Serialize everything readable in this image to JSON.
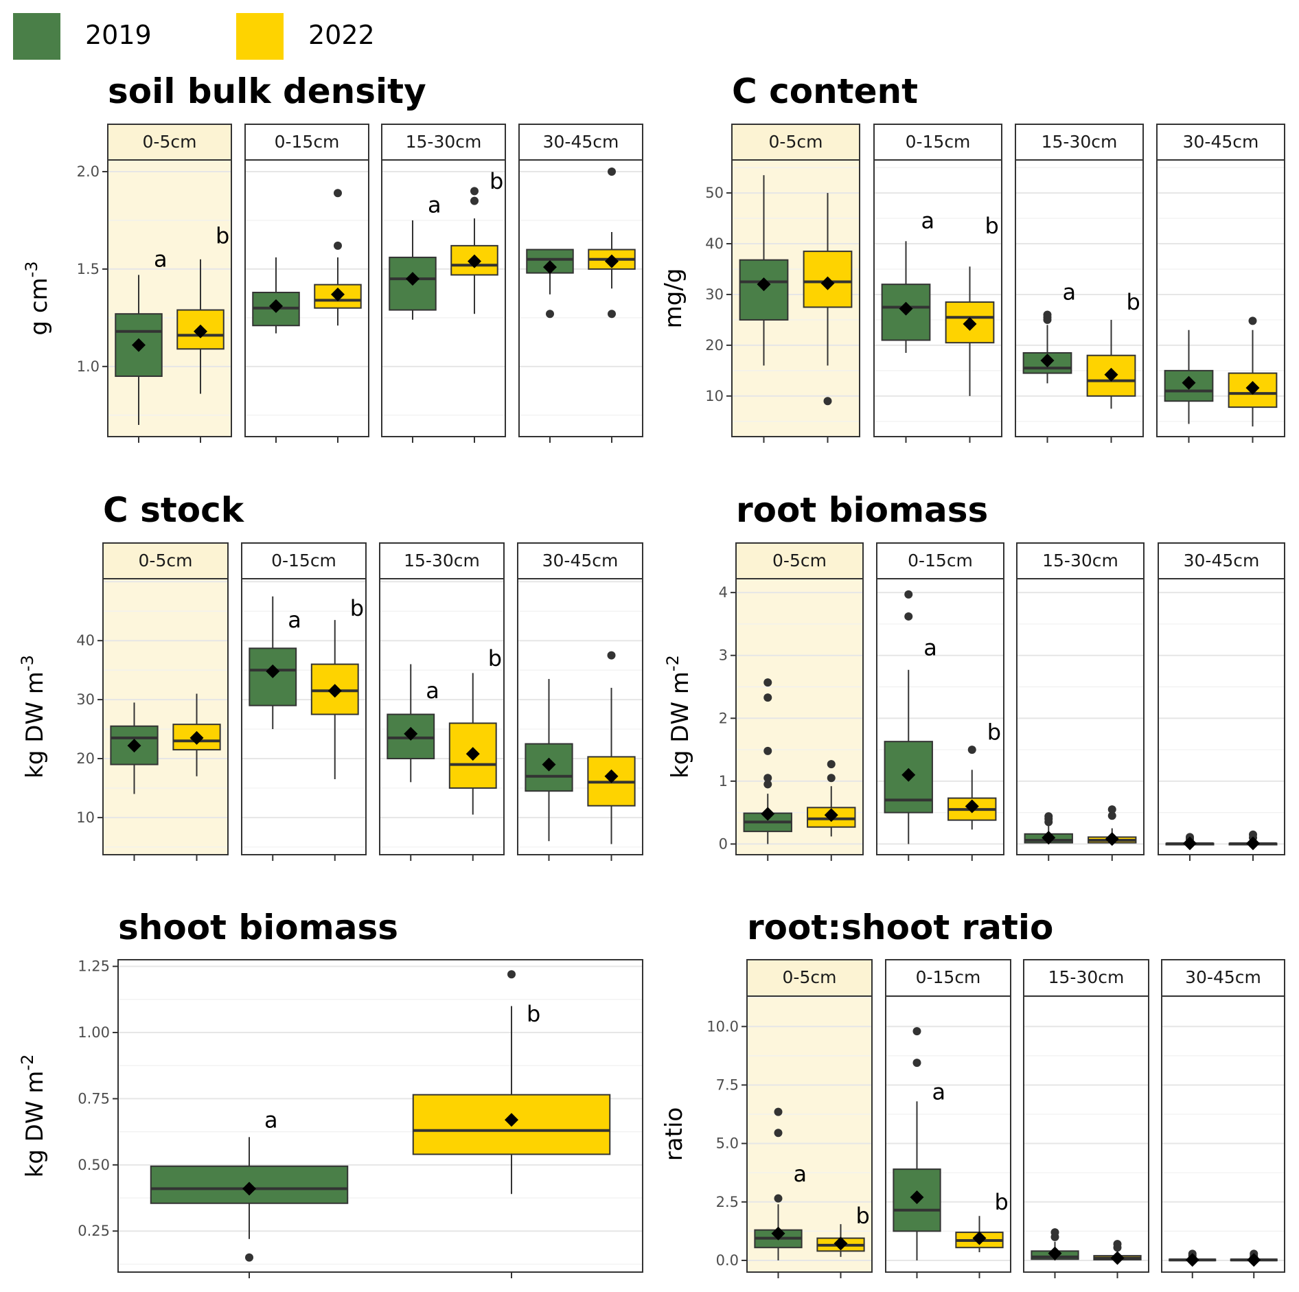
{
  "legend": [
    {
      "label": "2019",
      "color": "#4a7f48"
    },
    {
      "label": "2022",
      "color": "#fed300"
    }
  ],
  "colors": {
    "y2019": "#4a7f48",
    "y2022": "#fed300",
    "highlight_strip": "#fcf3d3",
    "highlight_panel": "#fdf6dc"
  },
  "facets": [
    "0-5cm",
    "0-15cm",
    "15-30cm",
    "30-45cm"
  ],
  "chart_data": [
    {
      "id": "bulk",
      "type": "box",
      "title": "soil bulk density",
      "ylabel": "g cm",
      "ylabel_sup": "-3",
      "ylim": [
        0.64,
        2.06
      ],
      "yticks": [
        "1.0",
        "1.5",
        "2.0"
      ],
      "highlight_facet": "0-5cm",
      "facets": [
        {
          "name": "0-5cm",
          "letters": [
            "a",
            "b"
          ],
          "boxes": [
            {
              "year": "2019",
              "q1": 0.95,
              "median": 1.18,
              "q3": 1.27,
              "whisker_low": 0.7,
              "whisker_high": 1.47,
              "mean": 1.11,
              "outliers": [],
              "letter_y": 1.55
            },
            {
              "year": "2022",
              "q1": 1.09,
              "median": 1.16,
              "q3": 1.29,
              "whisker_low": 0.86,
              "whisker_high": 1.55,
              "mean": 1.18,
              "outliers": [],
              "letter_y": 1.67
            }
          ]
        },
        {
          "name": "0-15cm",
          "letters": [],
          "boxes": [
            {
              "year": "2019",
              "q1": 1.21,
              "median": 1.3,
              "q3": 1.38,
              "whisker_low": 1.17,
              "whisker_high": 1.56,
              "mean": 1.31,
              "outliers": []
            },
            {
              "year": "2022",
              "q1": 1.3,
              "median": 1.34,
              "q3": 1.42,
              "whisker_low": 1.21,
              "whisker_high": 1.56,
              "mean": 1.37,
              "outliers": [
                1.62,
                1.89
              ]
            }
          ]
        },
        {
          "name": "15-30cm",
          "letters": [
            "a",
            "b"
          ],
          "boxes": [
            {
              "year": "2019",
              "q1": 1.29,
              "median": 1.45,
              "q3": 1.56,
              "whisker_low": 1.24,
              "whisker_high": 1.75,
              "mean": 1.45,
              "outliers": [],
              "letter_y": 1.83
            },
            {
              "year": "2022",
              "q1": 1.47,
              "median": 1.52,
              "q3": 1.62,
              "whisker_low": 1.27,
              "whisker_high": 1.76,
              "mean": 1.54,
              "outliers": [
                1.85,
                1.9
              ],
              "letter_y": 1.95
            }
          ]
        },
        {
          "name": "30-45cm",
          "letters": [],
          "boxes": [
            {
              "year": "2019",
              "q1": 1.48,
              "median": 1.55,
              "q3": 1.6,
              "whisker_low": 1.37,
              "whisker_high": 1.6,
              "mean": 1.51,
              "outliers": [
                1.27
              ]
            },
            {
              "year": "2022",
              "q1": 1.5,
              "median": 1.55,
              "q3": 1.6,
              "whisker_low": 1.4,
              "whisker_high": 1.69,
              "mean": 1.54,
              "outliers": [
                1.27,
                2.0
              ]
            }
          ]
        }
      ]
    },
    {
      "id": "ccontent",
      "type": "box",
      "title": "C content",
      "ylabel": "mg/g",
      "ylabel_sup": "",
      "ylim": [
        2.0,
        56.5
      ],
      "yticks": [
        "10",
        "20",
        "30",
        "40",
        "50"
      ],
      "highlight_facet": "0-5cm",
      "facets": [
        {
          "name": "0-5cm",
          "letters": [],
          "boxes": [
            {
              "year": "2019",
              "q1": 25.0,
              "median": 32.5,
              "q3": 36.8,
              "whisker_low": 16.0,
              "whisker_high": 53.5,
              "mean": 32.0,
              "outliers": []
            },
            {
              "year": "2022",
              "q1": 27.5,
              "median": 32.5,
              "q3": 38.5,
              "whisker_low": 16.0,
              "whisker_high": 50.0,
              "mean": 32.2,
              "outliers": [
                9.0
              ]
            }
          ]
        },
        {
          "name": "0-15cm",
          "letters": [
            "a",
            "b"
          ],
          "boxes": [
            {
              "year": "2019",
              "q1": 21.0,
              "median": 27.5,
              "q3": 32.0,
              "whisker_low": 18.5,
              "whisker_high": 40.5,
              "mean": 27.2,
              "outliers": [],
              "letter_y": 44.5
            },
            {
              "year": "2022",
              "q1": 20.5,
              "median": 25.5,
              "q3": 28.5,
              "whisker_low": 10.0,
              "whisker_high": 35.5,
              "mean": 24.2,
              "outliers": [],
              "letter_y": 43.5
            }
          ]
        },
        {
          "name": "15-30cm",
          "letters": [
            "a",
            "b"
          ],
          "boxes": [
            {
              "year": "2019",
              "q1": 14.5,
              "median": 15.5,
              "q3": 18.5,
              "whisker_low": 12.5,
              "whisker_high": 24.0,
              "mean": 17.0,
              "outliers": [
                25.0,
                25.5,
                26.0
              ],
              "letter_y": 30.5
            },
            {
              "year": "2022",
              "q1": 10.0,
              "median": 13.0,
              "q3": 18.0,
              "whisker_low": 7.5,
              "whisker_high": 25.0,
              "mean": 14.2,
              "outliers": [],
              "letter_y": 28.5
            }
          ]
        },
        {
          "name": "30-45cm",
          "letters": [],
          "boxes": [
            {
              "year": "2019",
              "q1": 9.0,
              "median": 11.0,
              "q3": 15.0,
              "whisker_low": 4.5,
              "whisker_high": 23.0,
              "mean": 12.6,
              "outliers": []
            },
            {
              "year": "2022",
              "q1": 7.8,
              "median": 10.5,
              "q3": 14.5,
              "whisker_low": 4.0,
              "whisker_high": 23.0,
              "mean": 11.6,
              "outliers": [
                24.8
              ]
            }
          ]
        }
      ]
    },
    {
      "id": "cstock",
      "type": "box",
      "title": "C stock",
      "ylabel": "kg DW m",
      "ylabel_sup": "-3",
      "ylim": [
        3.7,
        50.5
      ],
      "yticks": [
        "10",
        "20",
        "30",
        "40"
      ],
      "highlight_facet": "0-5cm",
      "facets": [
        {
          "name": "0-5cm",
          "letters": [],
          "boxes": [
            {
              "year": "2019",
              "q1": 19.0,
              "median": 23.5,
              "q3": 25.5,
              "whisker_low": 14.0,
              "whisker_high": 29.5,
              "mean": 22.2,
              "outliers": []
            },
            {
              "year": "2022",
              "q1": 21.5,
              "median": 23.0,
              "q3": 25.8,
              "whisker_low": 17.0,
              "whisker_high": 31.0,
              "mean": 23.5,
              "outliers": []
            }
          ]
        },
        {
          "name": "0-15cm",
          "letters": [
            "a",
            "b"
          ],
          "boxes": [
            {
              "year": "2019",
              "q1": 29.0,
              "median": 35.0,
              "q3": 38.7,
              "whisker_low": 25.0,
              "whisker_high": 47.5,
              "mean": 34.8,
              "outliers": [],
              "letter_y": 43.5
            },
            {
              "year": "2022",
              "q1": 27.5,
              "median": 31.5,
              "q3": 36.0,
              "whisker_low": 16.5,
              "whisker_high": 43.5,
              "mean": 31.5,
              "outliers": [],
              "letter_y": 45.5
            }
          ]
        },
        {
          "name": "15-30cm",
          "letters": [
            "a",
            "b"
          ],
          "boxes": [
            {
              "year": "2019",
              "q1": 20.0,
              "median": 23.5,
              "q3": 27.5,
              "whisker_low": 16.0,
              "whisker_high": 36.0,
              "mean": 24.2,
              "outliers": [],
              "letter_y": 31.5
            },
            {
              "year": "2022",
              "q1": 15.0,
              "median": 19.0,
              "q3": 26.0,
              "whisker_low": 10.5,
              "whisker_high": 34.5,
              "mean": 20.8,
              "outliers": [],
              "letter_y": 37.0
            }
          ]
        },
        {
          "name": "30-45cm",
          "letters": [],
          "boxes": [
            {
              "year": "2019",
              "q1": 14.5,
              "median": 17.0,
              "q3": 22.5,
              "whisker_low": 6.0,
              "whisker_high": 33.5,
              "mean": 19.0,
              "outliers": []
            },
            {
              "year": "2022",
              "q1": 12.0,
              "median": 16.0,
              "q3": 20.3,
              "whisker_low": 5.5,
              "whisker_high": 32.0,
              "mean": 17.0,
              "outliers": [
                37.5
              ]
            }
          ]
        }
      ]
    },
    {
      "id": "root",
      "type": "box",
      "title": "root biomass",
      "ylabel": "kg DW m",
      "ylabel_sup": "-2",
      "ylim": [
        -0.17,
        4.22
      ],
      "yticks": [
        "0",
        "1",
        "2",
        "3",
        "4"
      ],
      "highlight_facet": "0-5cm",
      "facets": [
        {
          "name": "0-5cm",
          "letters": [],
          "boxes": [
            {
              "year": "2019",
              "q1": 0.2,
              "median": 0.35,
              "q3": 0.49,
              "whisker_low": 0.0,
              "whisker_high": 0.8,
              "mean": 0.48,
              "outliers": [
                0.95,
                1.05,
                1.48,
                2.33,
                2.57
              ]
            },
            {
              "year": "2022",
              "q1": 0.27,
              "median": 0.4,
              "q3": 0.58,
              "whisker_low": 0.12,
              "whisker_high": 0.92,
              "mean": 0.46,
              "outliers": [
                1.05,
                1.27
              ]
            }
          ]
        },
        {
          "name": "0-15cm",
          "letters": [
            "a",
            "b"
          ],
          "boxes": [
            {
              "year": "2019",
              "q1": 0.5,
              "median": 0.7,
              "q3": 1.63,
              "whisker_low": 0.0,
              "whisker_high": 2.77,
              "mean": 1.1,
              "outliers": [
                3.62,
                3.97
              ],
              "letter_y": 3.12
            },
            {
              "year": "2022",
              "q1": 0.38,
              "median": 0.55,
              "q3": 0.73,
              "whisker_low": 0.23,
              "whisker_high": 1.18,
              "mean": 0.6,
              "outliers": [
                1.5
              ],
              "letter_y": 1.78
            }
          ]
        },
        {
          "name": "15-30cm",
          "letters": [],
          "boxes": [
            {
              "year": "2019",
              "q1": 0.02,
              "median": 0.06,
              "q3": 0.16,
              "whisker_low": 0.0,
              "whisker_high": 0.3,
              "mean": 0.1,
              "outliers": [
                0.35,
                0.4,
                0.44
              ]
            },
            {
              "year": "2022",
              "q1": 0.02,
              "median": 0.06,
              "q3": 0.11,
              "whisker_low": 0.0,
              "whisker_high": 0.25,
              "mean": 0.08,
              "outliers": [
                0.45,
                0.55
              ]
            }
          ]
        },
        {
          "name": "30-45cm",
          "letters": [],
          "boxes": [
            {
              "year": "2019",
              "q1": 0.0,
              "median": 0.005,
              "q3": 0.01,
              "whisker_low": 0.0,
              "whisker_high": 0.03,
              "mean": 0.01,
              "outliers": [
                0.08,
                0.11
              ]
            },
            {
              "year": "2022",
              "q1": 0.0,
              "median": 0.005,
              "q3": 0.01,
              "whisker_low": 0.0,
              "whisker_high": 0.03,
              "mean": 0.01,
              "outliers": [
                0.1,
                0.15
              ]
            }
          ]
        }
      ]
    },
    {
      "id": "shoot",
      "type": "box",
      "title": "shoot biomass",
      "ylabel": "kg DW m",
      "ylabel_sup": "-2",
      "ylim": [
        0.095,
        1.275
      ],
      "yticks": [
        "0.25",
        "0.50",
        "0.75",
        "1.00",
        "1.25"
      ],
      "highlight_facet": "",
      "facets": [
        {
          "name": "",
          "letters": [
            "a",
            "b"
          ],
          "boxes": [
            {
              "year": "2019",
              "q1": 0.355,
              "median": 0.41,
              "q3": 0.495,
              "whisker_low": 0.22,
              "whisker_high": 0.605,
              "mean": 0.41,
              "outliers": [
                0.15
              ],
              "letter_y": 0.67
            },
            {
              "year": "2022",
              "q1": 0.54,
              "median": 0.63,
              "q3": 0.765,
              "whisker_low": 0.39,
              "whisker_high": 1.1,
              "mean": 0.67,
              "outliers": [
                1.22
              ],
              "letter_y": 1.07
            }
          ]
        }
      ]
    },
    {
      "id": "ratio",
      "type": "box",
      "title": "root:shoot ratio",
      "ylabel": "ratio",
      "ylabel_sup": "",
      "ylim": [
        -0.5,
        11.3
      ],
      "yticks": [
        "0.0",
        "2.5",
        "5.0",
        "7.5",
        "10.0"
      ],
      "highlight_facet": "0-5cm",
      "facets": [
        {
          "name": "0-5cm",
          "letters": [
            "a",
            "b"
          ],
          "boxes": [
            {
              "year": "2019",
              "q1": 0.55,
              "median": 0.95,
              "q3": 1.3,
              "whisker_low": 0.0,
              "whisker_high": 2.4,
              "mean": 1.15,
              "outliers": [
                2.65,
                5.45,
                6.35
              ],
              "letter_y": 3.7
            },
            {
              "year": "2022",
              "q1": 0.4,
              "median": 0.65,
              "q3": 0.95,
              "whisker_low": 0.15,
              "whisker_high": 1.55,
              "mean": 0.72,
              "outliers": [],
              "letter_y": 1.9
            }
          ]
        },
        {
          "name": "0-15cm",
          "letters": [
            "a",
            "b"
          ],
          "boxes": [
            {
              "year": "2019",
              "q1": 1.25,
              "median": 2.15,
              "q3": 3.9,
              "whisker_low": 0.0,
              "whisker_high": 6.8,
              "mean": 2.7,
              "outliers": [
                8.45,
                9.8
              ],
              "letter_y": 7.2
            },
            {
              "year": "2022",
              "q1": 0.55,
              "median": 0.85,
              "q3": 1.2,
              "whisker_low": 0.35,
              "whisker_high": 1.9,
              "mean": 0.95,
              "outliers": [],
              "letter_y": 2.5
            }
          ]
        },
        {
          "name": "15-30cm",
          "letters": [],
          "boxes": [
            {
              "year": "2019",
              "q1": 0.05,
              "median": 0.15,
              "q3": 0.4,
              "whisker_low": 0.0,
              "whisker_high": 0.8,
              "mean": 0.3,
              "outliers": [
                1.0,
                1.2
              ]
            },
            {
              "year": "2022",
              "q1": 0.03,
              "median": 0.1,
              "q3": 0.2,
              "whisker_low": 0.0,
              "whisker_high": 0.4,
              "mean": 0.1,
              "outliers": [
                0.55,
                0.7
              ]
            }
          ]
        },
        {
          "name": "30-45cm",
          "letters": [],
          "boxes": [
            {
              "year": "2019",
              "q1": 0.0,
              "median": 0.02,
              "q3": 0.05,
              "whisker_low": 0.0,
              "whisker_high": 0.1,
              "mean": 0.02,
              "outliers": [
                0.2,
                0.28
              ]
            },
            {
              "year": "2022",
              "q1": 0.0,
              "median": 0.02,
              "q3": 0.05,
              "whisker_low": 0.0,
              "whisker_high": 0.1,
              "mean": 0.02,
              "outliers": [
                0.18,
                0.28
              ]
            }
          ]
        }
      ]
    }
  ]
}
